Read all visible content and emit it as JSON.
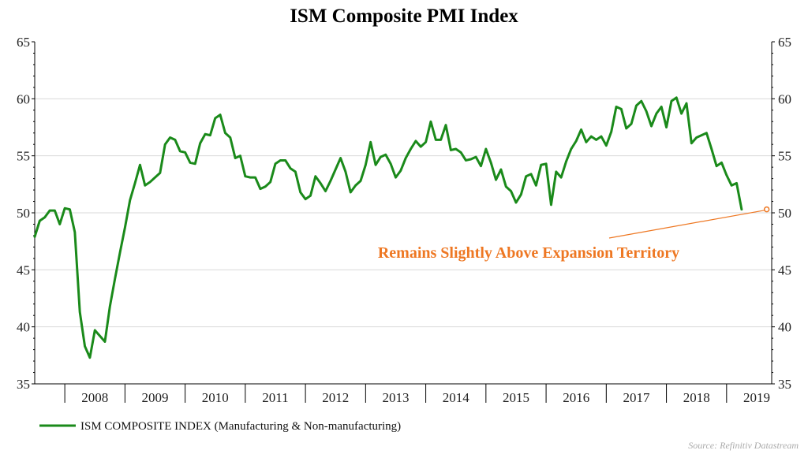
{
  "chart_data": {
    "type": "line",
    "title": "ISM Composite PMI Index",
    "xlabel": "",
    "ylabel": "",
    "ylim": [
      35,
      65
    ],
    "y_ticks": [
      35,
      40,
      45,
      50,
      55,
      60,
      65
    ],
    "x_range": [
      2007.5,
      2019.75
    ],
    "x_ticks": [
      "2008",
      "2009",
      "2010",
      "2011",
      "2012",
      "2013",
      "2014",
      "2015",
      "2016",
      "2017",
      "2018",
      "2019"
    ],
    "grid": "horizontal",
    "legend_position": "bottom-left",
    "line_color": "#1a8a1a",
    "annotation_color": "#ee7722",
    "series": [
      {
        "name": "ISM COMPOSITE INDEX (Manufacturing & Non-manufacturing)",
        "start": "2007-07",
        "frequency": "monthly",
        "values": [
          47.9,
          49.3,
          49.6,
          50.2,
          50.2,
          49.0,
          50.4,
          50.3,
          48.3,
          41.3,
          38.3,
          37.3,
          39.7,
          39.2,
          38.7,
          41.8,
          44.2,
          46.5,
          48.7,
          51.1,
          52.6,
          54.2,
          52.4,
          52.7,
          53.1,
          53.5,
          56.0,
          56.6,
          56.4,
          55.4,
          55.3,
          54.4,
          54.3,
          56.1,
          56.9,
          56.8,
          58.3,
          58.6,
          57.0,
          56.6,
          54.8,
          55.0,
          53.2,
          53.1,
          53.1,
          52.1,
          52.3,
          52.7,
          54.3,
          54.6,
          54.6,
          53.9,
          53.6,
          51.8,
          51.2,
          51.5,
          53.2,
          52.6,
          51.9,
          52.8,
          53.8,
          54.8,
          53.6,
          51.8,
          52.4,
          52.8,
          54.2,
          56.2,
          54.2,
          54.9,
          55.1,
          54.3,
          53.1,
          53.7,
          54.8,
          55.6,
          56.3,
          55.8,
          56.2,
          58.0,
          56.4,
          56.4,
          57.7,
          55.5,
          55.6,
          55.3,
          54.6,
          54.7,
          54.9,
          54.1,
          55.6,
          54.4,
          52.9,
          53.8,
          52.3,
          51.9,
          50.9,
          51.6,
          53.2,
          53.4,
          52.4,
          54.2,
          54.3,
          50.7,
          53.6,
          53.1,
          54.5,
          55.6,
          56.3,
          57.3,
          56.2,
          56.7,
          56.4,
          56.7,
          55.9,
          57.1,
          59.3,
          59.1,
          57.4,
          57.8,
          59.4,
          59.8,
          58.9,
          57.6,
          58.7,
          59.3,
          57.5,
          59.8,
          60.1,
          58.7,
          59.6,
          56.1,
          56.6,
          56.8,
          57.0,
          55.6,
          54.1,
          54.4,
          53.3,
          52.4,
          52.6,
          50.3
        ]
      }
    ],
    "annotation": {
      "text": "Remains Slightly Above Expansion Territory",
      "target_date": "2019-09",
      "target_value": 50.3
    },
    "source": "Source: Refinitiv Datastream"
  }
}
